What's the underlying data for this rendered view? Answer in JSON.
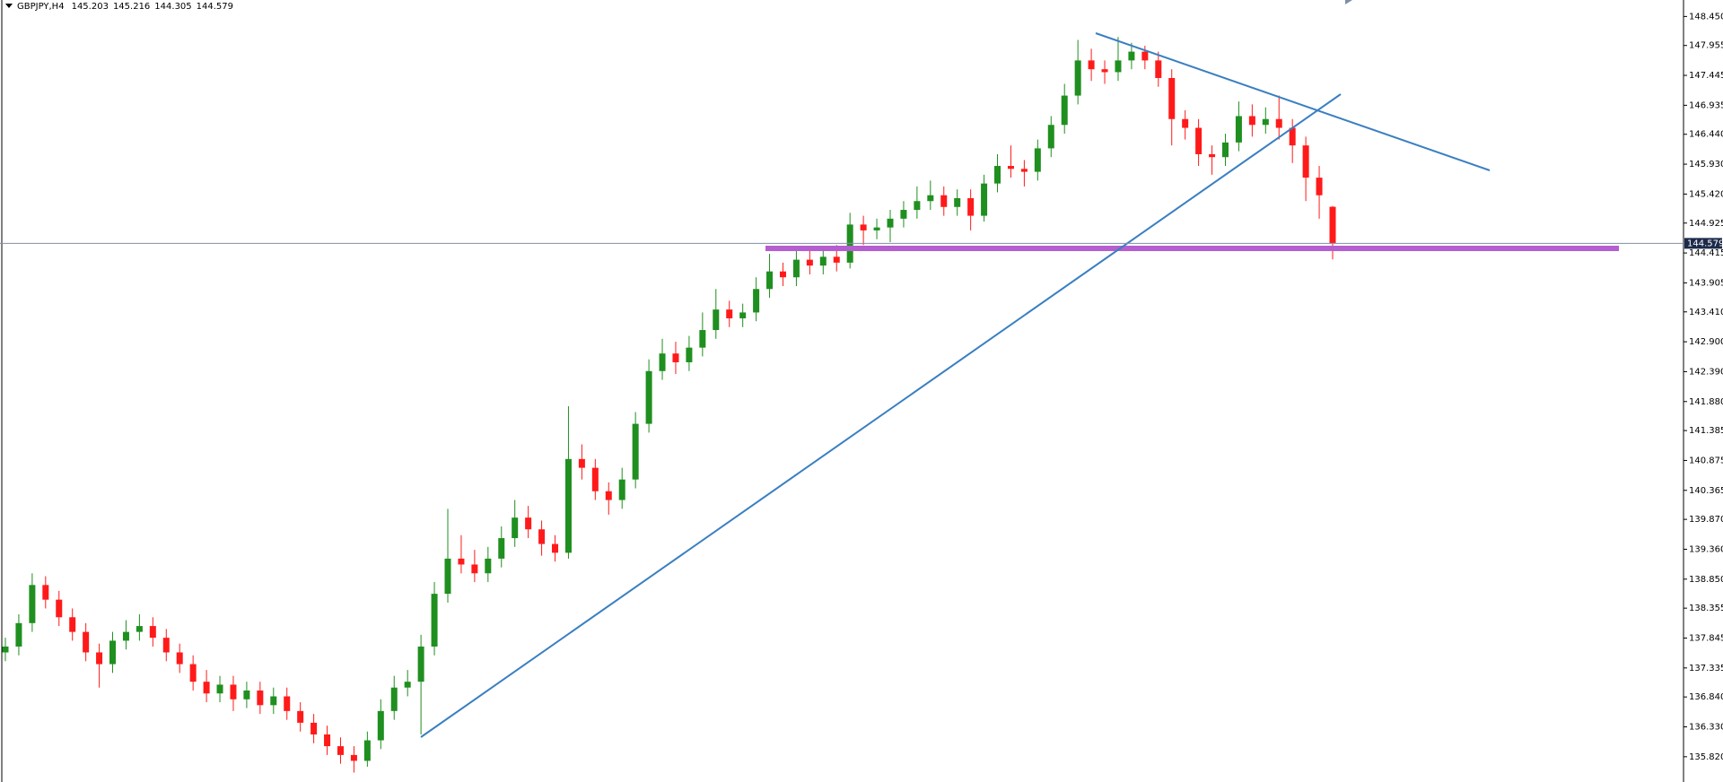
{
  "chart_data": {
    "type": "candlestick",
    "symbol": "GBPJPY,H4",
    "up_color": "#1f8f1f",
    "down_color": "#ff1a1a",
    "ylim": [
      135.389,
      148.731
    ],
    "yticks": [
      {
        "value": 148.45,
        "label": "148.450"
      },
      147.955,
      147.445,
      146.935,
      {
        "value": 146.44,
        "label": "146.440"
      },
      {
        "value": 145.93,
        "label": "145.930"
      },
      {
        "value": 145.42,
        "label": "145.420"
      },
      144.925,
      144.415,
      143.905,
      {
        "value": 143.41,
        "label": "143.410"
      },
      {
        "value": 142.9,
        "label": "142.900"
      },
      {
        "value": 142.39,
        "label": "142.390"
      },
      {
        "value": 141.88,
        "label": "141.880"
      },
      141.385,
      140.875,
      140.365,
      {
        "value": 139.87,
        "label": "139.870"
      },
      {
        "value": 139.36,
        "label": "139.360"
      },
      {
        "value": 138.85,
        "label": "138.850"
      },
      138.355,
      137.845,
      137.335,
      {
        "value": 136.84,
        "label": "136.840"
      },
      {
        "value": 136.33,
        "label": "136.330"
      },
      {
        "value": 135.82,
        "label": "135.820"
      }
    ],
    "open": [
      137.6,
      137.7,
      138.1,
      138.75,
      138.5,
      138.2,
      137.95,
      137.6,
      137.4,
      137.8,
      137.95,
      138.05,
      137.85,
      137.6,
      137.4,
      137.1,
      136.9,
      137.05,
      136.8,
      136.95,
      136.7,
      136.85,
      136.6,
      136.4,
      136.2,
      136.0,
      135.85,
      135.75,
      136.1,
      136.6,
      137.0,
      137.1,
      137.7,
      138.6,
      139.2,
      139.1,
      138.95,
      139.2,
      139.55,
      139.9,
      139.7,
      139.45,
      139.3,
      140.9,
      140.75,
      140.35,
      140.2,
      140.55,
      141.5,
      142.4,
      142.7,
      142.55,
      142.8,
      143.1,
      143.45,
      143.3,
      143.4,
      143.8,
      144.1,
      144.0,
      144.3,
      144.2,
      144.35,
      144.25,
      144.9,
      144.8,
      144.85,
      145.0,
      145.15,
      145.3,
      145.4,
      145.2,
      145.35,
      145.05,
      145.6,
      145.9,
      145.85,
      145.8,
      146.2,
      146.6,
      147.1,
      147.7,
      147.55,
      147.5,
      147.7,
      147.85,
      147.7,
      147.4,
      146.7,
      146.55,
      146.1,
      146.05,
      146.3,
      146.75,
      146.6,
      146.7,
      146.55,
      146.25,
      145.7,
      145.203
    ],
    "high": [
      137.85,
      138.25,
      138.95,
      138.9,
      138.65,
      138.35,
      138.1,
      137.75,
      137.95,
      138.15,
      138.25,
      138.2,
      138.0,
      137.75,
      137.55,
      137.3,
      137.2,
      137.2,
      137.1,
      137.1,
      137.0,
      137.0,
      136.75,
      136.55,
      136.35,
      136.15,
      136.0,
      136.25,
      136.8,
      137.2,
      137.3,
      137.9,
      138.8,
      140.05,
      139.6,
      139.35,
      139.4,
      139.75,
      140.2,
      140.1,
      139.85,
      139.6,
      141.8,
      141.15,
      140.9,
      140.5,
      140.75,
      141.7,
      142.6,
      142.95,
      142.9,
      143.0,
      143.4,
      143.8,
      143.6,
      143.55,
      144.0,
      144.4,
      144.25,
      144.45,
      144.45,
      144.5,
      144.55,
      145.1,
      145.05,
      145.0,
      145.15,
      145.3,
      145.55,
      145.65,
      145.55,
      145.5,
      145.5,
      145.75,
      146.1,
      146.25,
      146.0,
      146.35,
      146.75,
      147.3,
      148.05,
      147.9,
      147.7,
      148.1,
      148.0,
      147.95,
      147.85,
      147.55,
      146.85,
      146.7,
      146.25,
      146.45,
      147.0,
      146.95,
      146.9,
      147.1,
      146.7,
      146.4,
      145.9,
      145.216
    ],
    "low": [
      137.45,
      137.55,
      137.95,
      138.35,
      138.05,
      137.8,
      137.45,
      137.0,
      137.25,
      137.65,
      137.8,
      137.7,
      137.45,
      137.25,
      136.95,
      136.75,
      136.75,
      136.6,
      136.65,
      136.55,
      136.55,
      136.45,
      136.25,
      136.05,
      135.85,
      135.7,
      135.55,
      135.65,
      135.95,
      136.45,
      136.85,
      136.2,
      137.55,
      138.45,
      138.95,
      138.8,
      138.8,
      139.05,
      139.4,
      139.55,
      139.25,
      139.15,
      139.2,
      140.55,
      140.2,
      139.95,
      140.05,
      140.4,
      141.35,
      142.25,
      142.35,
      142.4,
      142.65,
      142.95,
      143.15,
      143.15,
      143.25,
      143.65,
      143.85,
      143.85,
      144.05,
      144.05,
      144.1,
      144.15,
      144.55,
      144.65,
      144.6,
      144.85,
      145.0,
      145.15,
      145.05,
      145.05,
      144.8,
      144.95,
      145.45,
      145.7,
      145.55,
      145.65,
      146.05,
      146.45,
      146.95,
      147.35,
      147.3,
      147.35,
      147.55,
      147.55,
      147.25,
      146.25,
      146.35,
      145.9,
      145.75,
      145.9,
      146.15,
      146.4,
      146.45,
      146.35,
      145.95,
      145.3,
      145.0,
      144.305
    ],
    "close": [
      137.7,
      138.1,
      138.75,
      138.5,
      138.2,
      137.95,
      137.6,
      137.4,
      137.8,
      137.95,
      138.05,
      137.85,
      137.6,
      137.4,
      137.1,
      136.9,
      137.05,
      136.8,
      136.95,
      136.7,
      136.85,
      136.6,
      136.4,
      136.2,
      136.0,
      135.85,
      135.75,
      136.1,
      136.6,
      137.0,
      137.1,
      137.7,
      138.6,
      139.2,
      139.1,
      138.95,
      139.2,
      139.55,
      139.9,
      139.7,
      139.45,
      139.3,
      140.9,
      140.75,
      140.35,
      140.2,
      140.55,
      141.5,
      142.4,
      142.7,
      142.55,
      142.8,
      143.1,
      143.45,
      143.3,
      143.4,
      143.8,
      144.1,
      144.0,
      144.3,
      144.2,
      144.35,
      144.25,
      144.9,
      144.8,
      144.85,
      145.0,
      145.15,
      145.3,
      145.4,
      145.2,
      145.35,
      145.05,
      145.6,
      145.9,
      145.85,
      145.8,
      146.2,
      146.6,
      147.1,
      147.7,
      147.55,
      147.5,
      147.7,
      147.85,
      147.7,
      147.4,
      146.7,
      146.55,
      146.1,
      146.05,
      146.3,
      146.75,
      146.6,
      146.7,
      146.55,
      146.25,
      145.7,
      145.4,
      144.579
    ]
  }
}
